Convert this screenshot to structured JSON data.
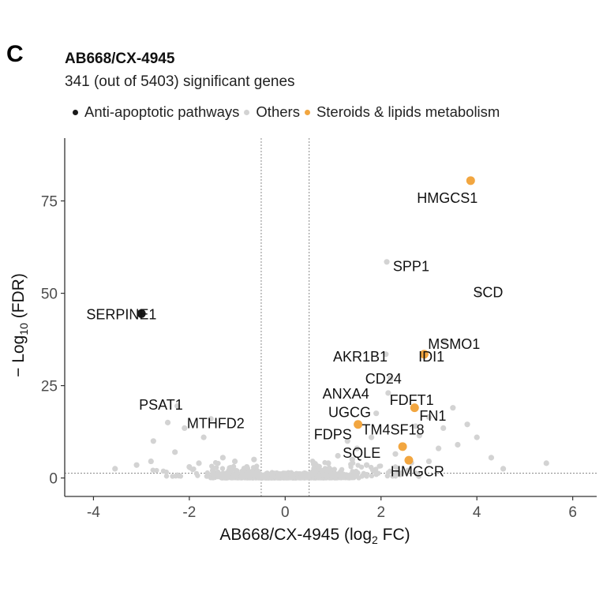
{
  "panel_letter": "C",
  "chart_data": {
    "type": "scatter",
    "title": "AB668/CX-4945",
    "subtitle": "341 (out of 5403) significant genes",
    "xlabel_main": "AB668/CX-4945 (log",
    "xlabel_sub": "2",
    "xlabel_end": " FC)",
    "ylabel_prefix": "− Log",
    "ylabel_sub": "10",
    "ylabel_suffix": " (FDR)",
    "xlim": [
      -4.6,
      6.5
    ],
    "ylim": [
      -5,
      92
    ],
    "x_ticks": [
      -4,
      -2,
      0,
      2,
      4,
      6
    ],
    "y_ticks": [
      0,
      25,
      50,
      75
    ],
    "fc_thresholds": [
      -0.5,
      0.5
    ],
    "fdr_threshold": 1.3,
    "grid": false,
    "legend_position": "top",
    "legend": [
      {
        "name": "Anti-apoptotic pathways",
        "color": "#1a1a1a"
      },
      {
        "name": "Others",
        "color": "#d3d3d3"
      },
      {
        "name": "Steroids & lipids metabolism",
        "color": "#f2a640"
      }
    ],
    "series": [
      {
        "name": "Anti-apoptotic pathways",
        "color": "#1a1a1a",
        "points": [
          {
            "x": -3.0,
            "y": 44.5,
            "label": "SERPINE1"
          }
        ]
      },
      {
        "name": "Steroids & lipids metabolism",
        "color": "#f2a640",
        "points": [
          {
            "x": 3.87,
            "y": 80.5,
            "label": "HMGCS1"
          },
          {
            "x": 2.9,
            "y": 33.5,
            "label": "IDI1"
          },
          {
            "x": 2.7,
            "y": 19.0,
            "label": "FDFT1"
          },
          {
            "x": 1.52,
            "y": 14.5,
            "label": "FDPS"
          },
          {
            "x": 2.45,
            "y": 8.5,
            "label": "SQLE"
          },
          {
            "x": 2.58,
            "y": 4.8,
            "label": "HMGCR"
          }
        ]
      },
      {
        "name": "Others",
        "color": "#d3d3d3",
        "points": [
          {
            "x": 2.12,
            "y": 58.5,
            "label": "SPP1"
          },
          {
            "x": 4.05,
            "y": 50.0,
            "label": "SCD"
          },
          {
            "x": 3.32,
            "y": 37.0,
            "label": "MSMO1"
          },
          {
            "x": 2.1,
            "y": 33.5,
            "label": "AKR1B1"
          },
          {
            "x": 2.2,
            "y": 27.0,
            "label": "CD24"
          },
          {
            "x": 2.15,
            "y": 23.0,
            "label": "ANXA4"
          },
          {
            "x": 3.0,
            "y": 16.5,
            "label": "FN1"
          },
          {
            "x": 1.9,
            "y": 17.5,
            "label": "UGCG"
          },
          {
            "x": 2.72,
            "y": 14.0,
            "label": "TM4SF18"
          },
          {
            "x": -2.25,
            "y": 19.5,
            "label": "PSAT1"
          },
          {
            "x": -1.55,
            "y": 16.0,
            "label": "MTHFD2"
          },
          {
            "x": 3.5,
            "y": 19.0,
            "label": ""
          },
          {
            "x": 3.3,
            "y": 13.5,
            "label": ""
          },
          {
            "x": 3.8,
            "y": 14.5,
            "label": ""
          },
          {
            "x": 4.0,
            "y": 11.0,
            "label": ""
          },
          {
            "x": 3.6,
            "y": 9.0,
            "label": ""
          },
          {
            "x": 2.8,
            "y": 11.5,
            "label": ""
          },
          {
            "x": 1.8,
            "y": 11.0,
            "label": ""
          },
          {
            "x": 1.3,
            "y": 10.0,
            "label": ""
          },
          {
            "x": 1.5,
            "y": 8.0,
            "label": ""
          },
          {
            "x": 3.2,
            "y": 8.0,
            "label": ""
          },
          {
            "x": 2.3,
            "y": 6.5,
            "label": ""
          },
          {
            "x": 1.1,
            "y": 6.0,
            "label": ""
          },
          {
            "x": 4.3,
            "y": 5.5,
            "label": ""
          },
          {
            "x": 3.0,
            "y": 4.5,
            "label": ""
          },
          {
            "x": 5.45,
            "y": 4.0,
            "label": ""
          },
          {
            "x": 4.55,
            "y": 2.5,
            "label": ""
          },
          {
            "x": 1.4,
            "y": 5.0,
            "label": ""
          },
          {
            "x": 0.9,
            "y": 4.0,
            "label": ""
          },
          {
            "x": 1.7,
            "y": 3.5,
            "label": ""
          },
          {
            "x": 0.7,
            "y": 2.5,
            "label": ""
          },
          {
            "x": -2.45,
            "y": 15.0,
            "label": ""
          },
          {
            "x": -2.1,
            "y": 13.5,
            "label": ""
          },
          {
            "x": -2.75,
            "y": 10.0,
            "label": ""
          },
          {
            "x": -1.7,
            "y": 11.0,
            "label": ""
          },
          {
            "x": -2.3,
            "y": 7.0,
            "label": ""
          },
          {
            "x": -2.8,
            "y": 4.5,
            "label": ""
          },
          {
            "x": -3.1,
            "y": 3.5,
            "label": ""
          },
          {
            "x": -3.55,
            "y": 2.5,
            "label": ""
          },
          {
            "x": -1.3,
            "y": 5.5,
            "label": ""
          },
          {
            "x": -1.05,
            "y": 4.5,
            "label": ""
          },
          {
            "x": -1.8,
            "y": 4.0,
            "label": ""
          },
          {
            "x": -2.0,
            "y": 3.0,
            "label": ""
          },
          {
            "x": -1.5,
            "y": 2.5,
            "label": ""
          },
          {
            "x": -0.8,
            "y": 3.0,
            "label": ""
          },
          {
            "x": -0.65,
            "y": 5.0,
            "label": ""
          }
        ]
      }
    ],
    "label_placement": [
      {
        "label": "HMGCS1",
        "anchor": "start",
        "lx": 2.75,
        "ly": 74.5
      },
      {
        "label": "SPP1",
        "anchor": "start",
        "lx": 2.25,
        "ly": 56.0
      },
      {
        "label": "SCD",
        "anchor": "start",
        "lx": 3.92,
        "ly": 49.0
      },
      {
        "label": "SERPINE1",
        "anchor": "start",
        "lx": -4.15,
        "ly": 43.0
      },
      {
        "label": "MSMO1",
        "anchor": "start",
        "lx": 2.98,
        "ly": 35.0
      },
      {
        "label": "AKR1B1",
        "anchor": "start",
        "lx": 1.0,
        "ly": 31.5
      },
      {
        "label": "IDI1",
        "anchor": "start",
        "lx": 2.78,
        "ly": 31.5
      },
      {
        "label": "CD24",
        "anchor": "start",
        "lx": 1.67,
        "ly": 25.5
      },
      {
        "label": "ANXA4",
        "anchor": "start",
        "lx": 0.78,
        "ly": 21.5
      },
      {
        "label": "FDFT1",
        "anchor": "start",
        "lx": 2.18,
        "ly": 19.8
      },
      {
        "label": "PSAT1",
        "anchor": "start",
        "lx": -3.05,
        "ly": 18.5
      },
      {
        "label": "UGCG",
        "anchor": "start",
        "lx": 0.9,
        "ly": 16.5
      },
      {
        "label": "FN1",
        "anchor": "start",
        "lx": 2.8,
        "ly": 15.5
      },
      {
        "label": "MTHFD2",
        "anchor": "start",
        "lx": -2.05,
        "ly": 13.5
      },
      {
        "label": "FDPS",
        "anchor": "start",
        "lx": 0.6,
        "ly": 10.5
      },
      {
        "label": "TM4SF18",
        "anchor": "start",
        "lx": 1.6,
        "ly": 11.8
      },
      {
        "label": "SQLE",
        "anchor": "start",
        "lx": 1.2,
        "ly": 5.5
      },
      {
        "label": "HMGCR",
        "anchor": "start",
        "lx": 2.2,
        "ly": 0.5
      }
    ]
  }
}
